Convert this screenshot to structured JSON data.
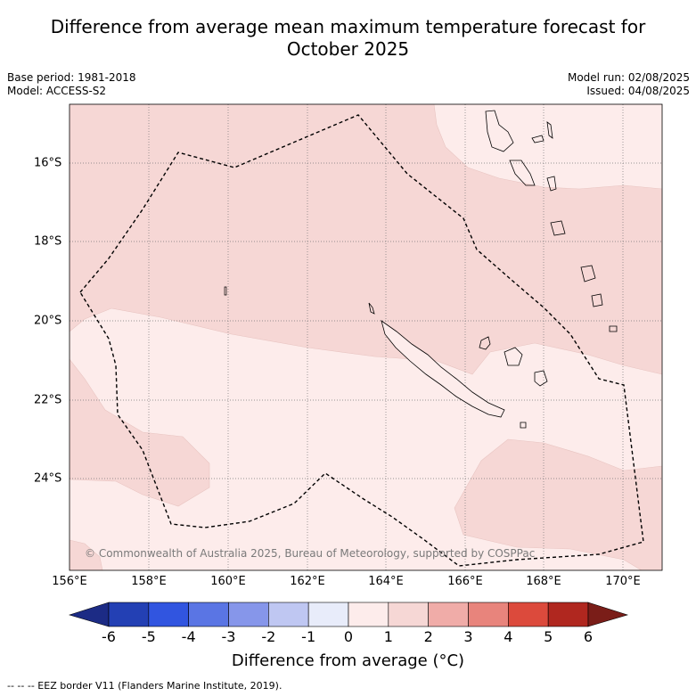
{
  "title_line1": "Difference from average mean maximum temperature forecast for",
  "title_line2": "October 2025",
  "base_period": "Base period: 1981-2018",
  "model": "Model: ACCESS-S2",
  "model_run": "Model run: 02/08/2025",
  "issued": "Issued: 04/08/2025",
  "copyright": "© Commonwealth of Australia 2025, Bureau of Meteorology, supported by COSPPac",
  "x_ticks": [
    "156°E",
    "158°E",
    "160°E",
    "162°E",
    "164°E",
    "166°E",
    "168°E",
    "170°E"
  ],
  "y_ticks": [
    "16°S",
    "18°S",
    "20°S",
    "22°S",
    "24°S"
  ],
  "colorbar": {
    "ticks": [
      "-6",
      "-5",
      "-4",
      "-3",
      "-2",
      "-1",
      "0",
      "1",
      "2",
      "3",
      "4",
      "5",
      "6"
    ],
    "colors": [
      "#1c2b85",
      "#2340b4",
      "#3155e0",
      "#5a75e4",
      "#8696ea",
      "#bfc7f2",
      "#e8ecfa",
      "#fdeceb",
      "#f6d7d5",
      "#f0aca8",
      "#e8847c",
      "#dc4a3c",
      "#b0271f",
      "#7a1d18"
    ],
    "label": "Difference from average (°C)"
  },
  "footer": "--  --  -- EEZ border V11 (Flanders Marine Institute, 2019)."
}
